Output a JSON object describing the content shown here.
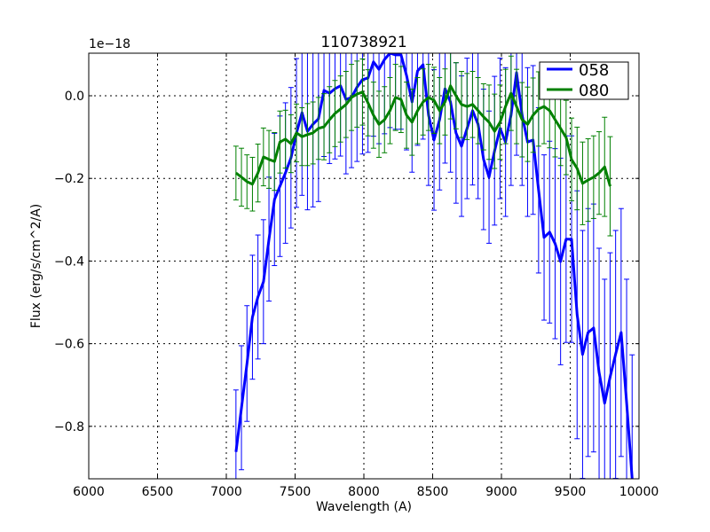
{
  "chart_data": {
    "type": "line",
    "title": "110738921",
    "xlabel": "Wavelength (A)",
    "ylabel": "Flux (erg/s/cm^2/A)",
    "y_offset_text": "1e−18",
    "xlim": [
      6000,
      10000
    ],
    "ylim": [
      -0.927,
      0.103
    ],
    "xticks": [
      6000,
      6500,
      7000,
      7500,
      8000,
      8500,
      9000,
      9500,
      10000
    ],
    "xtick_labels": [
      "6000",
      "6500",
      "7000",
      "7500",
      "8000",
      "8500",
      "9000",
      "9500",
      "10000"
    ],
    "yticks": [
      -0.8,
      -0.6,
      -0.4,
      -0.2,
      0.0
    ],
    "ytick_labels": [
      "−0.8",
      "−0.6",
      "−0.4",
      "−0.2",
      "0.0"
    ],
    "grid": true,
    "legend_position": "top-right",
    "x_start": 7070,
    "x_step": 40,
    "series": [
      {
        "name": "058",
        "color": "#0000ff",
        "values": [
          -0.862,
          -0.755,
          -0.648,
          -0.536,
          -0.487,
          -0.45,
          -0.347,
          -0.251,
          -0.219,
          -0.187,
          -0.15,
          -0.09,
          -0.041,
          -0.086,
          -0.069,
          -0.056,
          0.013,
          0.006,
          0.017,
          0.024,
          -0.009,
          -0.004,
          0.021,
          0.039,
          0.043,
          0.082,
          0.064,
          0.088,
          0.103,
          0.099,
          0.099,
          0.049,
          -0.015,
          0.06,
          0.075,
          -0.047,
          -0.107,
          -0.058,
          0.017,
          -0.015,
          -0.09,
          -0.122,
          -0.079,
          -0.036,
          -0.069,
          -0.154,
          -0.197,
          -0.133,
          -0.079,
          -0.112,
          -0.047,
          0.056,
          -0.047,
          -0.112,
          -0.107,
          -0.229,
          -0.343,
          -0.33,
          -0.358,
          -0.401,
          -0.347,
          -0.347,
          -0.53,
          -0.626,
          -0.573,
          -0.562,
          -0.669,
          -0.744,
          -0.68,
          -0.626,
          -0.573,
          -0.744,
          -0.927
        ],
        "errors": [
          0.15,
          0.15,
          0.14,
          0.15,
          0.15,
          0.15,
          0.15,
          0.16,
          0.17,
          0.17,
          0.17,
          0.18,
          0.2,
          0.19,
          0.2,
          0.2,
          0.16,
          0.17,
          0.17,
          0.17,
          0.18,
          0.17,
          0.18,
          0.18,
          0.18,
          0.18,
          0.18,
          0.18,
          0.18,
          0.18,
          0.18,
          0.18,
          0.17,
          0.18,
          0.18,
          0.17,
          0.17,
          0.17,
          0.18,
          0.17,
          0.17,
          0.17,
          0.17,
          0.18,
          0.18,
          0.17,
          0.16,
          0.18,
          0.17,
          0.18,
          0.17,
          0.2,
          0.17,
          0.18,
          0.18,
          0.2,
          0.2,
          0.22,
          0.23,
          0.25,
          0.25,
          0.25,
          0.3,
          0.3,
          0.3,
          0.3,
          0.3,
          0.3,
          0.3,
          0.3,
          0.3,
          0.3,
          0.3
        ]
      },
      {
        "name": "080",
        "color": "#008000",
        "values": [
          -0.187,
          -0.197,
          -0.208,
          -0.214,
          -0.187,
          -0.148,
          -0.154,
          -0.159,
          -0.112,
          -0.105,
          -0.116,
          -0.09,
          -0.099,
          -0.094,
          -0.09,
          -0.079,
          -0.075,
          -0.058,
          -0.043,
          -0.032,
          -0.021,
          -0.004,
          0.004,
          0.009,
          -0.017,
          -0.047,
          -0.069,
          -0.058,
          -0.036,
          -0.004,
          -0.009,
          -0.047,
          -0.064,
          -0.036,
          -0.015,
          -0.004,
          -0.011,
          -0.036,
          -0.015,
          0.024,
          0.0,
          -0.021,
          -0.026,
          -0.021,
          -0.036,
          -0.051,
          -0.064,
          -0.086,
          -0.064,
          -0.026,
          0.006,
          -0.026,
          -0.058,
          -0.069,
          -0.047,
          -0.032,
          -0.026,
          -0.036,
          -0.058,
          -0.079,
          -0.101,
          -0.154,
          -0.176,
          -0.212,
          -0.204,
          -0.197,
          -0.187,
          -0.172,
          -0.219
        ],
        "errors": [
          0.065,
          0.07,
          0.065,
          0.065,
          0.07,
          0.07,
          0.07,
          0.07,
          0.075,
          0.07,
          0.07,
          0.07,
          0.07,
          0.075,
          0.075,
          0.075,
          0.08,
          0.08,
          0.08,
          0.08,
          0.08,
          0.08,
          0.08,
          0.08,
          0.08,
          0.08,
          0.08,
          0.08,
          0.08,
          0.08,
          0.08,
          0.08,
          0.08,
          0.08,
          0.08,
          0.08,
          0.08,
          0.08,
          0.08,
          0.08,
          0.08,
          0.08,
          0.08,
          0.08,
          0.08,
          0.08,
          0.09,
          0.09,
          0.09,
          0.09,
          0.09,
          0.09,
          0.09,
          0.09,
          0.09,
          0.09,
          0.09,
          0.09,
          0.09,
          0.09,
          0.09,
          0.1,
          0.1,
          0.1,
          0.1,
          0.1,
          0.1,
          0.12,
          0.12
        ]
      }
    ]
  }
}
